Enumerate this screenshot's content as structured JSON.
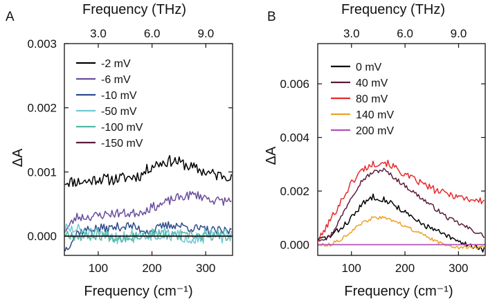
{
  "figure": {
    "x_axis_label": "Frequency (cm⁻¹)"
  },
  "chart_data": [
    {
      "panel": "A",
      "type": "line",
      "title": "",
      "top_xlabel": "Frequency (THz)",
      "top_ticks": [
        "3.0",
        "6.0",
        "9.0"
      ],
      "top_tick_values_thz": [
        3.0,
        6.0,
        9.0
      ],
      "ylabel": "ΔA",
      "xlim": [
        37,
        350
      ],
      "ylim": [
        -0.0003,
        0.003
      ],
      "x_ticks": [
        100,
        200,
        300
      ],
      "x_tick_labels": [
        "100",
        "200",
        "300"
      ],
      "y_ticks": [
        0.0,
        0.001,
        0.002,
        0.003
      ],
      "y_tick_labels": [
        "0.000",
        "0.001",
        "0.002",
        "0.003"
      ],
      "zero_line": true,
      "legend": "top-left",
      "series": [
        {
          "name": "-2 mV",
          "color": "#000000",
          "noise": 9e-05,
          "seed": 11,
          "x": [
            40,
            60,
            80,
            100,
            120,
            140,
            160,
            180,
            200,
            220,
            240,
            260,
            280,
            300,
            320,
            350
          ],
          "values": [
            0.00085,
            0.00085,
            0.00085,
            0.0009,
            0.00088,
            0.0009,
            0.00092,
            0.00095,
            0.0011,
            0.00115,
            0.00118,
            0.00112,
            0.00105,
            0.001,
            0.00095,
            0.00095
          ]
        },
        {
          "name": "-6 mV",
          "color": "#6a4c9c",
          "noise": 7e-05,
          "seed": 23,
          "x": [
            40,
            60,
            80,
            100,
            120,
            140,
            160,
            180,
            200,
            220,
            240,
            260,
            280,
            300,
            320,
            350
          ],
          "values": [
            0.0001,
            0.0003,
            0.0003,
            0.00032,
            0.00035,
            0.00036,
            0.00035,
            0.00038,
            0.00045,
            0.0005,
            0.00058,
            0.00062,
            0.00065,
            0.0006,
            0.00055,
            0.00055
          ]
        },
        {
          "name": "-10 mV",
          "color": "#2e4a8c",
          "noise": 7e-05,
          "seed": 37,
          "x": [
            40,
            60,
            80,
            100,
            120,
            140,
            160,
            180,
            200,
            220,
            240,
            260,
            280,
            300,
            320,
            350
          ],
          "values": [
            -0.0002,
            5e-05,
            0.0001,
            0.00012,
            0.00012,
            0.00015,
            0.00016,
            0.0001,
            8e-05,
            0.00015,
            0.00018,
            0.00015,
            0.00012,
            0.0001,
            8e-05,
            8e-05
          ]
        },
        {
          "name": "-50 mV",
          "color": "#6fc8d3",
          "noise": 0.00011,
          "seed": 51,
          "x": [
            40,
            60,
            80,
            100,
            120,
            140,
            160,
            180,
            200,
            220,
            240,
            260,
            280,
            300,
            320,
            350
          ],
          "values": [
            0.0001,
            0.0001,
            5e-05,
            2e-05,
            0.0,
            -2e-05,
            0.0,
            2e-05,
            4e-05,
            3e-05,
            0.0,
            0.0,
            -2e-05,
            0.0,
            0.0,
            0.0
          ]
        },
        {
          "name": "-100 mV",
          "color": "#4fb8a6",
          "noise": 8e-05,
          "seed": 67,
          "x": [
            40,
            60,
            80,
            100,
            120,
            140,
            160,
            180,
            200,
            220,
            240,
            260,
            280,
            300,
            320,
            350
          ],
          "values": [
            5e-05,
            0.0,
            0.0,
            2e-05,
            0.0,
            -2e-05,
            0.0,
            2e-05,
            3e-05,
            2e-05,
            0.0,
            0.0,
            0.0,
            0.0,
            0.0,
            0.0
          ]
        },
        {
          "name": "-150 mV",
          "color": "#5a1a3a",
          "noise": 0.0,
          "seed": 79,
          "x": [
            40,
            350
          ],
          "values": [
            0.0,
            0.0
          ]
        }
      ]
    },
    {
      "panel": "B",
      "type": "line",
      "title": "",
      "top_xlabel": "Frequency (THz)",
      "top_ticks": [
        "3.0",
        "6.0",
        "9.0"
      ],
      "top_tick_values_thz": [
        3.0,
        6.0,
        9.0
      ],
      "ylabel": "ΔA",
      "xlim": [
        37,
        350
      ],
      "ylim": [
        -0.0004,
        0.0075
      ],
      "x_ticks": [
        100,
        200,
        300
      ],
      "x_tick_labels": [
        "100",
        "200",
        "300"
      ],
      "y_ticks": [
        0.0,
        0.002,
        0.004,
        0.006
      ],
      "y_tick_labels": [
        "0.000",
        "0.002",
        "0.004",
        "0.006"
      ],
      "zero_line": false,
      "legend": "top-left",
      "series": [
        {
          "name": "0 mV",
          "color": "#000000",
          "noise": 0.00011,
          "seed": 83,
          "x": [
            40,
            60,
            80,
            100,
            120,
            140,
            160,
            180,
            200,
            220,
            240,
            260,
            280,
            300,
            320,
            350
          ],
          "values": [
            0.0002,
            0.0003,
            0.0006,
            0.001,
            0.0015,
            0.0018,
            0.0017,
            0.0015,
            0.0012,
            0.0009,
            0.0007,
            0.0005,
            0.0003,
            0.0001,
            0.0,
            -0.0002
          ]
        },
        {
          "name": "40 mV",
          "color": "#5a1a3a",
          "noise": 8e-05,
          "seed": 97,
          "x": [
            40,
            60,
            80,
            100,
            120,
            140,
            160,
            180,
            200,
            220,
            240,
            260,
            280,
            300,
            320,
            350
          ],
          "values": [
            0.0002,
            0.0003,
            0.001,
            0.0018,
            0.0024,
            0.0027,
            0.0028,
            0.0025,
            0.0022,
            0.0019,
            0.0016,
            0.0013,
            0.001,
            0.0008,
            0.0006,
            0.0003
          ]
        },
        {
          "name": "80 mV",
          "color": "#e8282a",
          "noise": 0.00013,
          "seed": 101,
          "x": [
            40,
            60,
            80,
            100,
            120,
            140,
            160,
            180,
            200,
            220,
            240,
            260,
            280,
            300,
            320,
            350
          ],
          "values": [
            0.0002,
            0.0009,
            0.0016,
            0.0023,
            0.0028,
            0.003,
            0.0031,
            0.0029,
            0.0026,
            0.0024,
            0.0022,
            0.002,
            0.0019,
            0.0018,
            0.0017,
            0.0016
          ]
        },
        {
          "name": "140 mV",
          "color": "#f0a020",
          "noise": 6e-05,
          "seed": 113,
          "x": [
            40,
            60,
            80,
            100,
            120,
            140,
            160,
            180,
            200,
            220,
            240,
            260,
            280,
            300,
            320,
            350
          ],
          "values": [
            0.0,
            0.0,
            0.0002,
            0.0005,
            0.0008,
            0.001,
            0.001,
            0.0009,
            0.0007,
            0.0005,
            0.0003,
            0.0001,
            0.0,
            -0.0001,
            -0.0001,
            -0.0001
          ]
        },
        {
          "name": "200 mV",
          "color": "#b050b8",
          "noise": 0.0,
          "seed": 127,
          "x": [
            40,
            350
          ],
          "values": [
            0.0,
            0.0
          ]
        }
      ]
    }
  ]
}
